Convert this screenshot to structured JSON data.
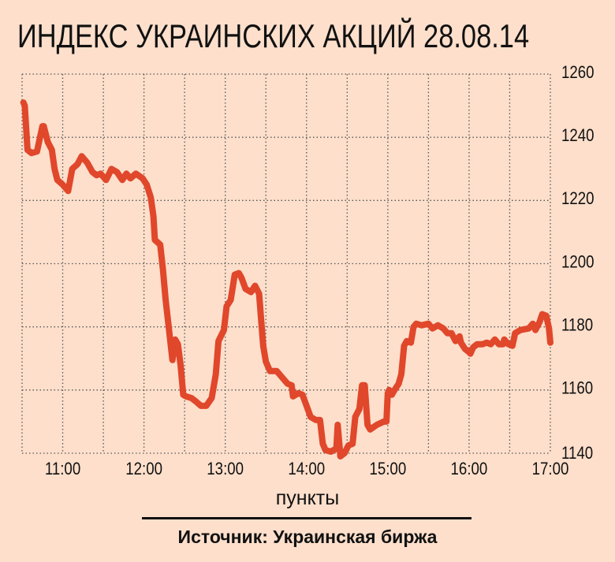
{
  "chart_data": {
    "type": "line",
    "title": "ИНДЕКС УКРАИНСКИХ АКЦИЙ 28.08.14",
    "ylabel": "пункты",
    "source": "Источник: Украинская биржа",
    "xlim": [
      "10:30",
      "17:00"
    ],
    "ylim": [
      1140,
      1260
    ],
    "x_ticks": [
      "11:00",
      "12:00",
      "13:00",
      "14:00",
      "15:00",
      "16:00",
      "17:00"
    ],
    "y_ticks": [
      1140,
      1160,
      1180,
      1200,
      1220,
      1240,
      1260
    ],
    "grid": true,
    "line_color": "#e0472b",
    "background": "#fddfcb",
    "points": [
      [
        "10:31",
        1251
      ],
      [
        "10:32",
        1250
      ],
      [
        "10:34",
        1236
      ],
      [
        "10:37",
        1235
      ],
      [
        "10:41",
        1235.5
      ],
      [
        "10:45",
        1243.5
      ],
      [
        "10:46",
        1243.5
      ],
      [
        "10:49",
        1238.5
      ],
      [
        "10:52",
        1236
      ],
      [
        "10:54",
        1230
      ],
      [
        "10:56",
        1226.5
      ],
      [
        "11:00",
        1225
      ],
      [
        "11:04",
        1223
      ],
      [
        "11:07",
        1230
      ],
      [
        "11:11",
        1231.5
      ],
      [
        "11:14",
        1234
      ],
      [
        "11:18",
        1232
      ],
      [
        "11:22",
        1229
      ],
      [
        "11:25",
        1228
      ],
      [
        "11:28",
        1228.5
      ],
      [
        "11:32",
        1226.5
      ],
      [
        "11:36",
        1230
      ],
      [
        "11:40",
        1229
      ],
      [
        "11:44",
        1226.5
      ],
      [
        "11:47",
        1228.5
      ],
      [
        "11:50",
        1227
      ],
      [
        "11:54",
        1228.5
      ],
      [
        "11:59",
        1227
      ],
      [
        "12:02",
        1225
      ],
      [
        "12:05",
        1221
      ],
      [
        "12:07",
        1215
      ],
      [
        "12:08",
        1207.5
      ],
      [
        "12:12",
        1206
      ],
      [
        "12:14",
        1198
      ],
      [
        "12:16",
        1188.5
      ],
      [
        "12:18",
        1181
      ],
      [
        "12:21",
        1169.5
      ],
      [
        "12:23",
        1176
      ],
      [
        "12:25",
        1174.5
      ],
      [
        "12:27",
        1168
      ],
      [
        "12:29",
        1158.5
      ],
      [
        "12:31",
        1158
      ],
      [
        "12:35",
        1157.5
      ],
      [
        "12:38",
        1156.5
      ],
      [
        "12:42",
        1155
      ],
      [
        "12:46",
        1155
      ],
      [
        "12:50",
        1157.5
      ],
      [
        "12:53",
        1165
      ],
      [
        "12:55",
        1175.5
      ],
      [
        "12:59",
        1179
      ],
      [
        "13:01",
        1186.5
      ],
      [
        "13:04",
        1188.5
      ],
      [
        "13:07",
        1196.5
      ],
      [
        "13:10",
        1197
      ],
      [
        "13:12",
        1195.5
      ],
      [
        "13:15",
        1192
      ],
      [
        "13:19",
        1191
      ],
      [
        "13:22",
        1193
      ],
      [
        "13:25",
        1190.5
      ],
      [
        "13:28",
        1174
      ],
      [
        "13:30",
        1169
      ],
      [
        "13:33",
        1166
      ],
      [
        "13:38",
        1166
      ],
      [
        "13:42",
        1164
      ],
      [
        "13:46",
        1162
      ],
      [
        "13:49",
        1161.5
      ],
      [
        "13:50",
        1158
      ],
      [
        "13:54",
        1159
      ],
      [
        "13:57",
        1158.5
      ],
      [
        "14:00",
        1155
      ],
      [
        "14:03",
        1151.5
      ],
      [
        "14:07",
        1150.5
      ],
      [
        "14:10",
        1150.5
      ],
      [
        "14:12",
        1143
      ],
      [
        "14:14",
        1141
      ],
      [
        "14:18",
        1140.5
      ],
      [
        "14:22",
        1141.5
      ],
      [
        "14:23",
        1149
      ],
      [
        "14:25",
        1139
      ],
      [
        "14:28",
        1140
      ],
      [
        "14:31",
        1142.5
      ],
      [
        "14:34",
        1143
      ],
      [
        "14:36",
        1151.5
      ],
      [
        "14:39",
        1154
      ],
      [
        "14:41",
        1161.5
      ],
      [
        "14:43",
        1161.5
      ],
      [
        "14:45",
        1149
      ],
      [
        "14:47",
        1147.5
      ],
      [
        "14:52",
        1149
      ],
      [
        "14:57",
        1150
      ],
      [
        "14:59",
        1150
      ],
      [
        "15:00",
        1159
      ],
      [
        "15:01",
        1160
      ],
      [
        "15:03",
        1158.5
      ],
      [
        "15:05",
        1160
      ],
      [
        "15:08",
        1162
      ],
      [
        "15:10",
        1165
      ],
      [
        "15:12",
        1174
      ],
      [
        "15:14",
        1175.5
      ],
      [
        "15:17",
        1175
      ],
      [
        "15:19",
        1180
      ],
      [
        "15:21",
        1181
      ],
      [
        "15:25",
        1180.5
      ],
      [
        "15:30",
        1181
      ],
      [
        "15:33",
        1179.5
      ],
      [
        "15:37",
        1180.5
      ],
      [
        "15:41",
        1179.5
      ],
      [
        "15:44",
        1178
      ],
      [
        "15:47",
        1178
      ],
      [
        "15:50",
        1175.5
      ],
      [
        "15:53",
        1177
      ],
      [
        "15:54",
        1175
      ],
      [
        "15:57",
        1173
      ],
      [
        "16:00",
        1172
      ],
      [
        "16:01",
        1171.5
      ],
      [
        "16:03",
        1173.5
      ],
      [
        "16:06",
        1174.5
      ],
      [
        "16:10",
        1174.5
      ],
      [
        "16:13",
        1175
      ],
      [
        "16:16",
        1174.5
      ],
      [
        "16:19",
        1176
      ],
      [
        "16:22",
        1174.5
      ],
      [
        "16:25",
        1174.5
      ],
      [
        "16:26",
        1176
      ],
      [
        "16:29",
        1174.5
      ],
      [
        "16:32",
        1174
      ],
      [
        "16:34",
        1178
      ],
      [
        "16:38",
        1179
      ],
      [
        "16:44",
        1179.5
      ],
      [
        "16:47",
        1181
      ],
      [
        "16:49",
        1179
      ],
      [
        "16:52",
        1181.5
      ],
      [
        "16:54",
        1184
      ],
      [
        "16:57",
        1183.5
      ],
      [
        "16:59",
        1179.5
      ],
      [
        "17:00",
        1175
      ]
    ]
  }
}
